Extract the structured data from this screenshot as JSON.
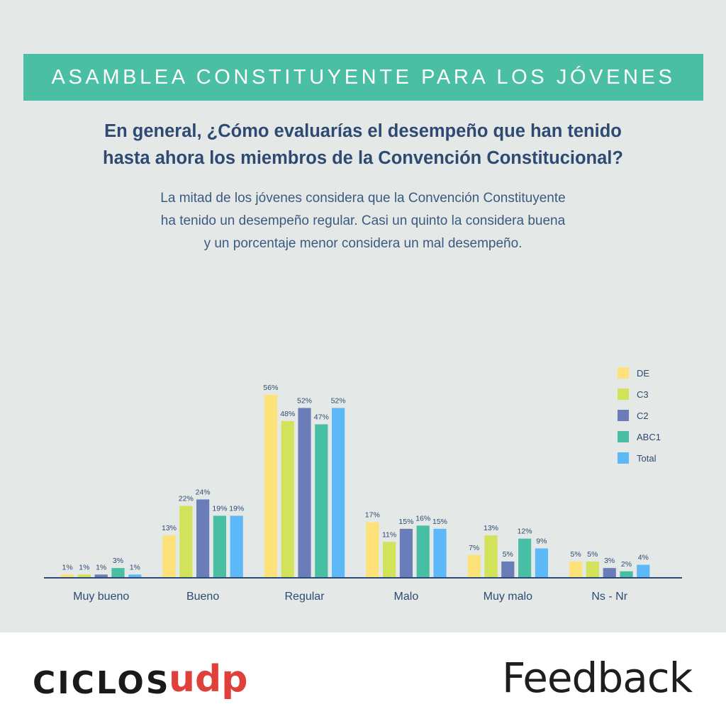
{
  "header": {
    "banner": "ASAMBLEA CONSTITUYENTE PARA LOS JÓVENES"
  },
  "question": {
    "line1": "En general, ¿Cómo evaluarías el desempeño que han tenido",
    "line2": "hasta ahora los miembros de la Convención Constitucional?"
  },
  "subtitle": {
    "line1": "La mitad de los jóvenes considera que la Convención Constituyente",
    "line2": "ha tenido un desempeño regular. Casi un quinto la considera buena",
    "line3": "y un porcentaje menor considera un mal desempeño."
  },
  "chart_data": {
    "type": "bar",
    "categories": [
      "Muy bueno",
      "Bueno",
      "Regular",
      "Malo",
      "Muy malo",
      "Ns - Nr"
    ],
    "series": [
      {
        "name": "DE",
        "color": "#fde27a",
        "values": [
          1,
          13,
          56,
          17,
          7,
          5
        ]
      },
      {
        "name": "C3",
        "color": "#d2e25a",
        "values": [
          1,
          22,
          48,
          11,
          13,
          5
        ]
      },
      {
        "name": "C2",
        "color": "#6a7db8",
        "values": [
          1,
          24,
          52,
          15,
          5,
          3
        ]
      },
      {
        "name": "ABC1",
        "color": "#48bfa4",
        "values": [
          3,
          19,
          47,
          16,
          12,
          2
        ]
      },
      {
        "name": "Total",
        "color": "#5cb8f7",
        "values": [
          1,
          19,
          52,
          15,
          9,
          4
        ]
      }
    ],
    "value_suffix": "%",
    "ylim": [
      0,
      56
    ],
    "grid": false,
    "legend": "top-right",
    "axis_color": "#2e4a73"
  },
  "footer": {
    "logo_left": "CICLOS",
    "logo_left_accent": "udp",
    "logo_right": "Feedback"
  }
}
